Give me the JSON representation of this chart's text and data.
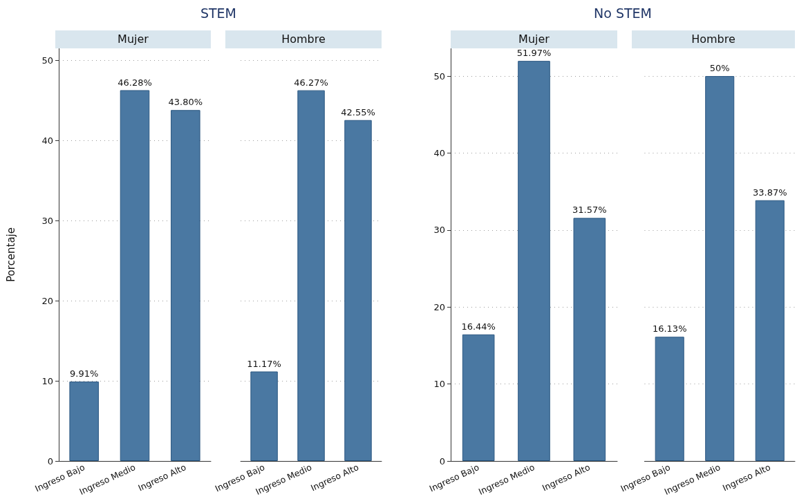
{
  "chart_data": [
    {
      "type": "bar",
      "title": "STEM",
      "subtitle": "Mujer",
      "ylabel": "Porcentaje",
      "categories": [
        "Ingreso Bajo",
        "Ingreso Medio",
        "Ingreso Alto"
      ],
      "values": [
        9.91,
        46.28,
        43.8
      ],
      "value_labels": [
        "9.91%",
        "46.28%",
        "43.80%"
      ],
      "color": "#4a78a2",
      "ylim": [
        0,
        51.5
      ],
      "yticks": [
        0,
        10,
        20,
        30,
        40,
        50
      ],
      "grid": "y"
    },
    {
      "type": "bar",
      "subtitle": "Hombre",
      "categories": [
        "Ingreso Bajo",
        "Ingreso Medio",
        "Ingreso Alto"
      ],
      "values": [
        11.17,
        46.27,
        42.55
      ],
      "value_labels": [
        "11.17%",
        "46.27%",
        "42.55%"
      ],
      "color": "#4a78a2",
      "grid": "y",
      "tick_labels": "x"
    },
    {
      "type": "bar",
      "title": "No STEM",
      "subtitle": "Mujer",
      "categories": [
        "Ingreso Bajo",
        "Ingreso Medio",
        "Ingreso Alto"
      ],
      "values": [
        16.44,
        51.97,
        31.57
      ],
      "value_labels": [
        "16.44%",
        "51.97%",
        "31.57%"
      ],
      "color": "#4a78a2",
      "ylim": [
        0,
        53.6
      ],
      "yticks": [
        0,
        10,
        20,
        30,
        40,
        50
      ],
      "grid": "y"
    },
    {
      "type": "bar",
      "subtitle": "Hombre",
      "categories": [
        "Ingreso Bajo",
        "Ingreso Medio",
        "Ingreso Alto"
      ],
      "values": [
        16.13,
        50,
        33.87
      ],
      "value_labels": [
        "16.13%",
        "50%",
        "33.87%"
      ],
      "color": "#4a78a2",
      "grid": "y",
      "tick_labels": "x"
    }
  ]
}
